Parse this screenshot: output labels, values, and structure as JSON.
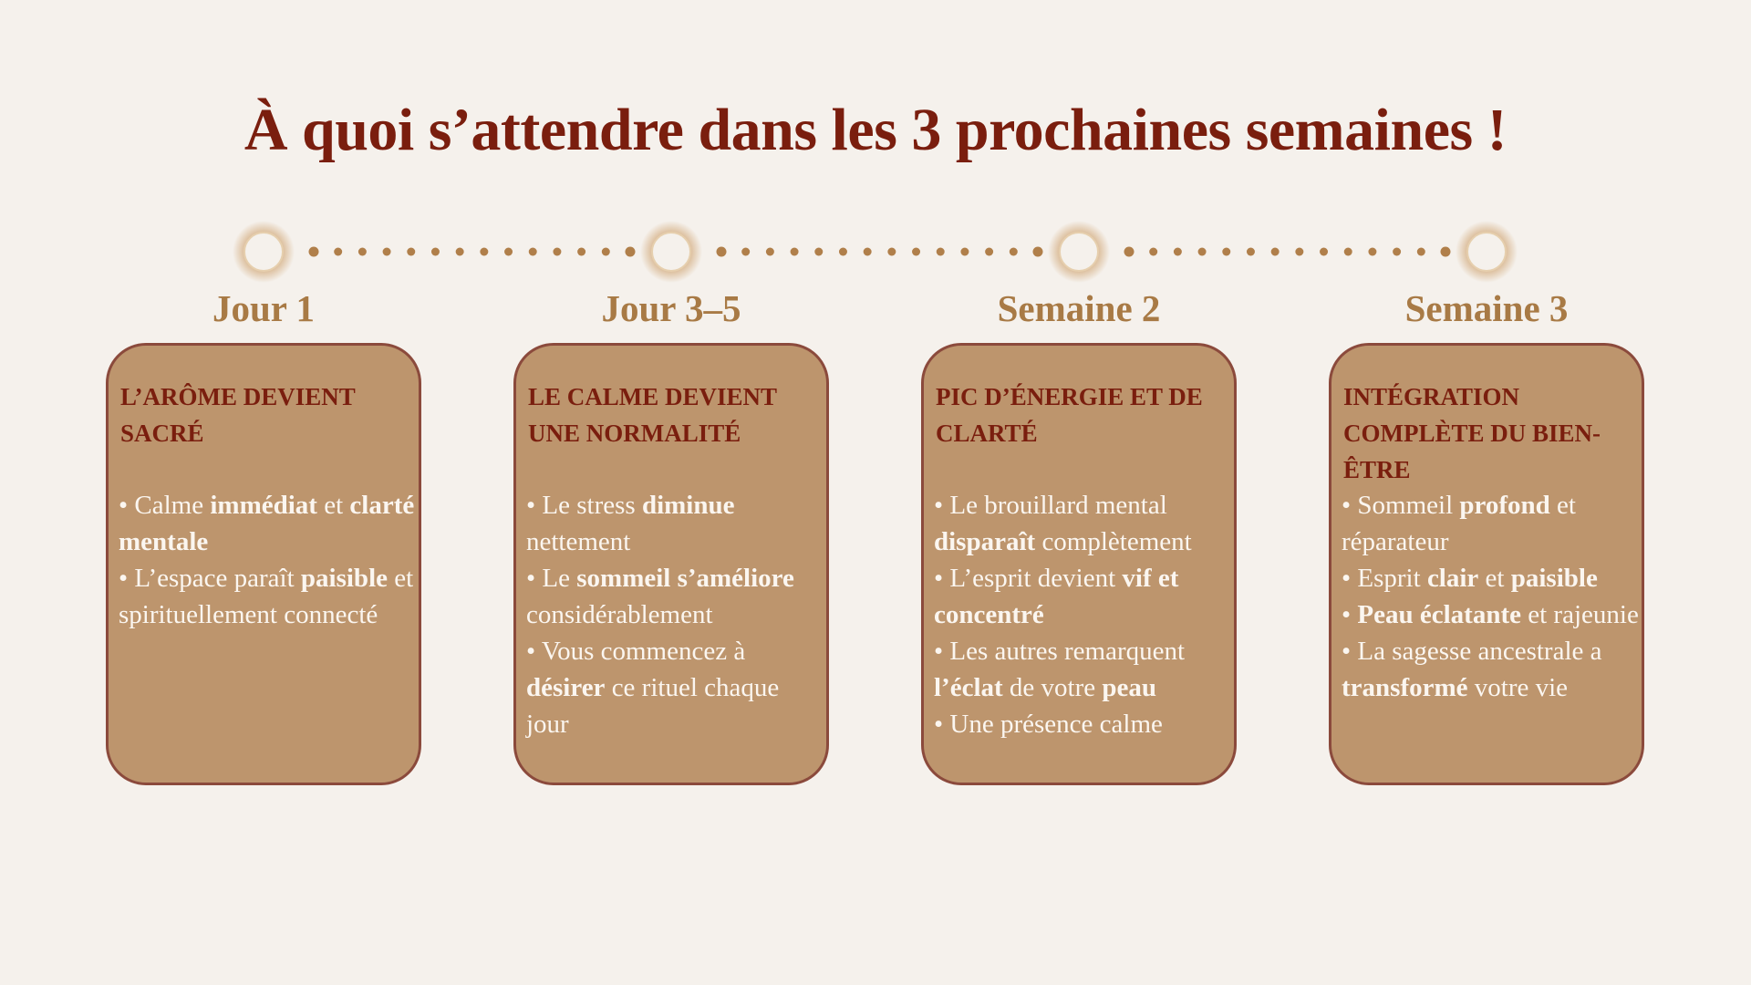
{
  "title": "À quoi s’attendre dans les 3 prochaines semaines !",
  "stages": [
    {
      "label": "Jour 1",
      "heading": "L’ARÔME DEVIENT SACRÉ",
      "bullets": [
        [
          {
            "text": "• Calme "
          },
          {
            "text": "immédiat",
            "bold": true
          },
          {
            "text": " et "
          },
          {
            "text": "clarté mentale",
            "bold": true
          }
        ],
        [
          {
            "text": "• L’espace paraît "
          },
          {
            "text": "paisible",
            "bold": true
          },
          {
            "text": " et spirituellement connecté"
          }
        ]
      ]
    },
    {
      "label": "Jour 3–5",
      "heading": "LE CALME DEVIENT UNE  NORMALITÉ",
      "bullets": [
        [
          {
            "text": "• Le stress "
          },
          {
            "text": "diminue",
            "bold": true
          },
          {
            "text": " nettement"
          }
        ],
        [
          {
            "text": "• Le "
          },
          {
            "text": "sommeil s’améliore",
            "bold": true
          },
          {
            "text": " considérablement"
          }
        ],
        [
          {
            "text": "• Vous commencez à "
          },
          {
            "text": "désirer",
            "bold": true
          },
          {
            "text": " ce rituel chaque jour"
          }
        ]
      ]
    },
    {
      "label": "Semaine 2",
      "heading": "PIC D’ÉNERGIE ET DE CLARTÉ",
      "bullets": [
        [
          {
            "text": "• Le brouillard mental "
          },
          {
            "text": "disparaît",
            "bold": true
          },
          {
            "text": " complètement"
          }
        ],
        [
          {
            "text": "• L’esprit devient "
          },
          {
            "text": "vif et concentré",
            "bold": true
          }
        ],
        [
          {
            "text": "• Les autres remarquent "
          },
          {
            "text": "l’éclat",
            "bold": true
          },
          {
            "text": " de votre "
          },
          {
            "text": "peau",
            "bold": true
          }
        ],
        [
          {
            "text": "• Une présence calme"
          }
        ]
      ]
    },
    {
      "label": "Semaine 3",
      "heading": "INTÉGRATION COMPLÈTE DU BIEN-ÊTRE",
      "bullets": [
        [
          {
            "text": "• Sommeil "
          },
          {
            "text": "profond",
            "bold": true
          },
          {
            "text": " et réparateur"
          }
        ],
        [
          {
            "text": "• Esprit "
          },
          {
            "text": "clair",
            "bold": true
          },
          {
            "text": " et "
          },
          {
            "text": "paisible",
            "bold": true
          }
        ],
        [
          {
            "text": "• "
          },
          {
            "text": "Peau éclatante",
            "bold": true
          },
          {
            "text": " et rajeunie"
          }
        ],
        [
          {
            "text": "• La sagesse ancestrale a "
          },
          {
            "text": "transformé",
            "bold": true
          },
          {
            "text": " votre vie"
          }
        ]
      ]
    }
  ]
}
